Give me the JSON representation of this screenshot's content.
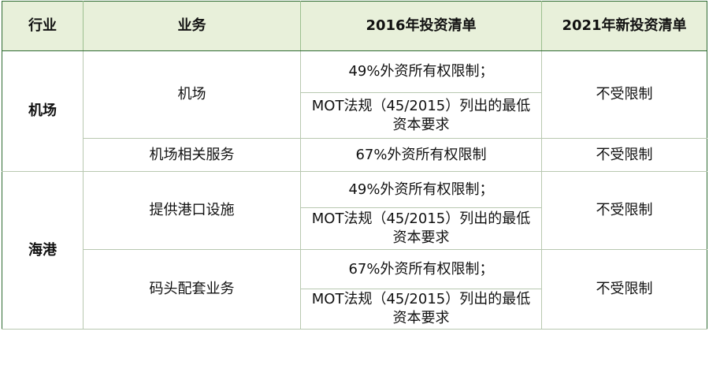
{
  "headers": {
    "industry": "行业",
    "business": "业务",
    "list_2016": "2016年投资清单",
    "list_2021": "2021年新投资清单"
  },
  "sections": [
    {
      "industry": "机场",
      "rows": [
        {
          "business": "机场",
          "list_2016": [
            "49%外资所有权限制；",
            "MOT法规（45/2015）列出的最低资本要求"
          ],
          "list_2021": "不受限制"
        },
        {
          "business": "机场相关服务",
          "list_2016": [
            "67%外资所有权限制"
          ],
          "list_2021": "不受限制"
        }
      ]
    },
    {
      "industry": "海港",
      "rows": [
        {
          "business": "提供港口设施",
          "list_2016": [
            "49%外资所有权限制；",
            "MOT法规（45/2015）列出的最低资本要求"
          ],
          "list_2021": "不受限制"
        },
        {
          "business": "码头配套业务",
          "list_2016": [
            "67%外资所有权限制；",
            "MOT法规（45/2015）列出的最低资本要求"
          ],
          "list_2021": "不受限制"
        }
      ]
    }
  ]
}
